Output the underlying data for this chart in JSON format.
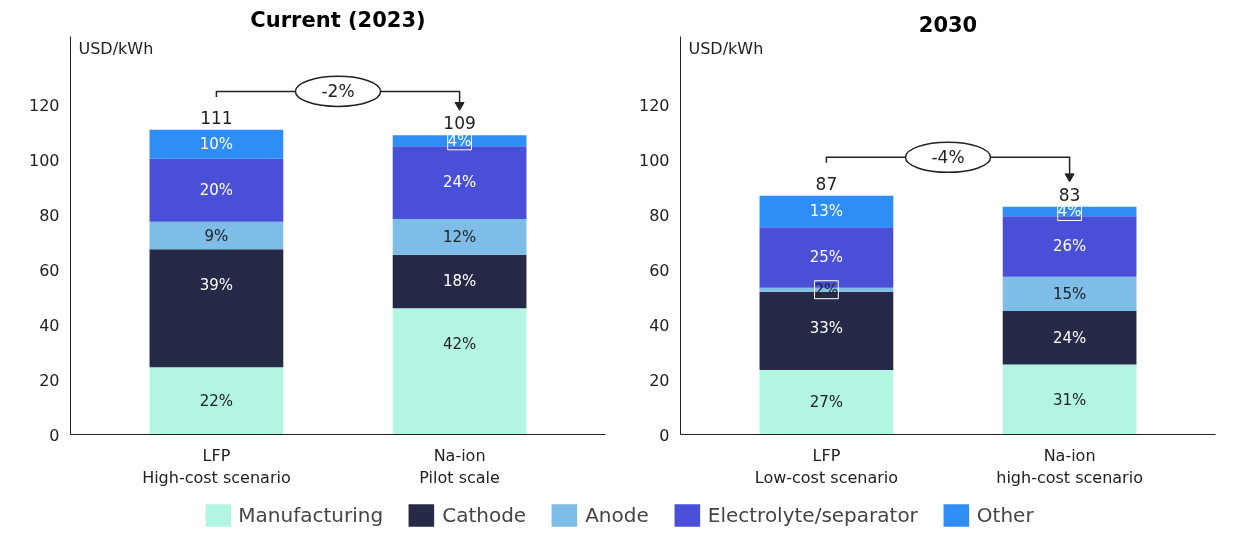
{
  "chart_data": [
    {
      "type": "bar",
      "title": "Current (2023)",
      "ylabel": "USD/kWh",
      "stacked": true,
      "categories": [
        "LFP\nHigh-cost scenario",
        "Na-ion\nPilot scale"
      ],
      "series": [
        {
          "name": "Manufacturing",
          "color": "#b3f5e3",
          "values": [
            24.5,
            46
          ]
        },
        {
          "name": "Cathode",
          "color": "#272a47",
          "values": [
            43,
            19.5
          ]
        },
        {
          "name": "Anode",
          "color": "#7dbde8",
          "values": [
            10,
            13
          ]
        },
        {
          "name": "Electrolyte/separator",
          "color": "#4a4fd8",
          "values": [
            23,
            26.5
          ]
        },
        {
          "name": "Other",
          "color": "#2f8ef5",
          "values": [
            10.5,
            4
          ]
        }
      ],
      "totals": [
        "111",
        "109"
      ],
      "annotations": [
        "-2%",
        {
          "text": "22%",
          "x": "LFP\nHigh-cost scenario",
          "y": 24.5
        },
        {
          "text": "39%",
          "x": "LFP\nHigh-cost scenario",
          "y": 67.5
        },
        {
          "text": "9%",
          "x": "LFP\nHigh-cost scenario",
          "y": 77.5
        },
        {
          "text": "20%",
          "x": "LFP\nHigh-cost scenario",
          "y": 100.5
        },
        {
          "text": "10%",
          "x": "LFP\nHigh-cost scenario",
          "y": 111
        },
        {
          "text": "42%",
          "x": "Na-ion\nPilot scale",
          "y": 46
        },
        {
          "text": "18%",
          "x": "Na-ion\nPilot scale",
          "y": 65.5
        },
        {
          "text": "12%",
          "x": "Na-ion\nPilot scale",
          "y": 78.5
        },
        {
          "text": "24%",
          "x": "Na-ion\nPilot scale",
          "y": 105
        },
        {
          "text": "4%",
          "x": "Na-ion\nPilot scale",
          "y": 109
        }
      ],
      "ylim": [
        0,
        145
      ],
      "yticks": [
        0,
        20,
        40,
        60,
        80,
        100,
        120
      ],
      "grid": false,
      "legend": "bottom"
    },
    {
      "type": "bar",
      "title": "2030",
      "ylabel": "USD/kWh",
      "stacked": true,
      "categories": [
        "LFP\nLow-cost scenario",
        "Na-ion\nhigh-cost scenario"
      ],
      "series": [
        {
          "color": "#b3f5e3",
          "values": [
            23.5,
            25.5
          ]
        },
        {
          "color": "#272a47",
          "values": [
            28.5,
            19.5
          ]
        },
        {
          "color": "#7dbde8",
          "values": [
            1.5,
            12.5
          ]
        },
        {
          "color": "#4a4fd8",
          "values": [
            22,
            22
          ]
        },
        {
          "color": "#2f8ef5",
          "values": [
            11.5,
            3.5
          ]
        }
      ],
      "totals": [
        "87",
        "83"
      ],
      "annotations": [
        "-4%",
        {
          "text": "27%",
          "x": "LFP\nLow-cost scenario",
          "y": 23.5
        },
        {
          "text": "33%",
          "x": "LFP\nLow-cost scenario",
          "y": 52
        },
        {
          "text": "2%",
          "x": "LFP\nLow-cost scenario",
          "y": 53.5
        },
        {
          "text": "25%",
          "x": "LFP\nLow-cost scenario",
          "y": 75.5
        },
        {
          "text": "13%",
          "x": "LFP\nLow-cost scenario",
          "y": 87
        },
        {
          "text": "31%",
          "x": "Na-ion\nhigh-cost scenario",
          "y": 25.5
        },
        {
          "text": "24%",
          "x": "Na-ion\nhigh-cost scenario",
          "y": 45
        },
        {
          "text": "15%",
          "x": "Na-ion\nhigh-cost scenario",
          "y": 57.5
        },
        {
          "text": "26%",
          "x": "Na-ion\nhigh-cost scenario",
          "y": 79.5
        },
        {
          "text": "4%",
          "x": "Na-ion\nhigh-cost scenario",
          "y": 83
        }
      ],
      "ylim": [
        0,
        145
      ],
      "yticks": [
        0,
        20,
        40,
        60,
        80,
        100,
        120
      ],
      "grid": false
    }
  ]
}
